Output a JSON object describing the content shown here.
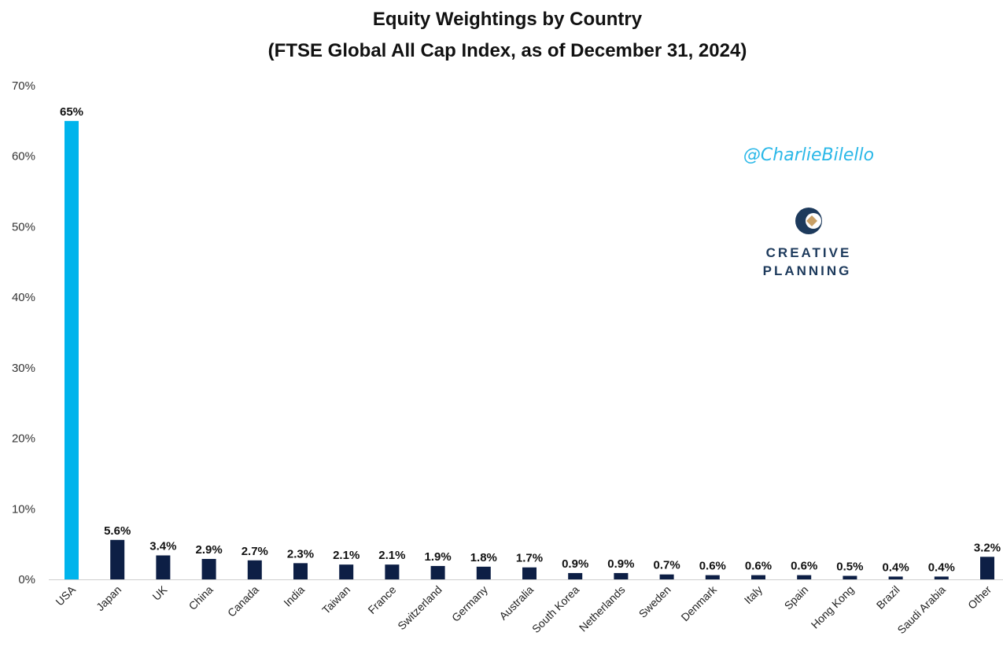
{
  "chart_data": {
    "type": "bar",
    "title": "Equity Weightings by Country",
    "subtitle": "(FTSE Global All Cap Index, as of December 31, 2024)",
    "xlabel": "",
    "ylabel": "",
    "ylim": [
      0,
      70
    ],
    "yticks": [
      "0%",
      "10%",
      "20%",
      "30%",
      "40%",
      "50%",
      "60%",
      "70%"
    ],
    "grid": false,
    "legend": "none",
    "categories": [
      "USA",
      "Japan",
      "UK",
      "China",
      "Canada",
      "India",
      "Taiwan",
      "France",
      "Switzerland",
      "Germany",
      "Australia",
      "South Korea",
      "Netherlands",
      "Sweden",
      "Denmark",
      "Italy",
      "Spain",
      "Hong Kong",
      "Brazil",
      "Saudi Arabia",
      "Other"
    ],
    "values": [
      65,
      5.6,
      3.4,
      2.9,
      2.7,
      2.3,
      2.1,
      2.1,
      1.9,
      1.8,
      1.7,
      0.9,
      0.9,
      0.7,
      0.6,
      0.6,
      0.6,
      0.5,
      0.4,
      0.4,
      3.2
    ],
    "data_labels": [
      "65%",
      "5.6%",
      "3.4%",
      "2.9%",
      "2.7%",
      "2.3%",
      "2.1%",
      "2.1%",
      "1.9%",
      "1.8%",
      "1.7%",
      "0.9%",
      "0.9%",
      "0.7%",
      "0.6%",
      "0.6%",
      "0.6%",
      "0.5%",
      "0.4%",
      "0.4%",
      "3.2%"
    ],
    "colors": {
      "highlight": "#00b4ec",
      "default": "#0d1f45"
    },
    "highlight_index": 0
  },
  "watermark": {
    "handle": "@CharlieBilello",
    "logo_line1": "CREATIVE",
    "logo_line2": "PLANNING"
  }
}
